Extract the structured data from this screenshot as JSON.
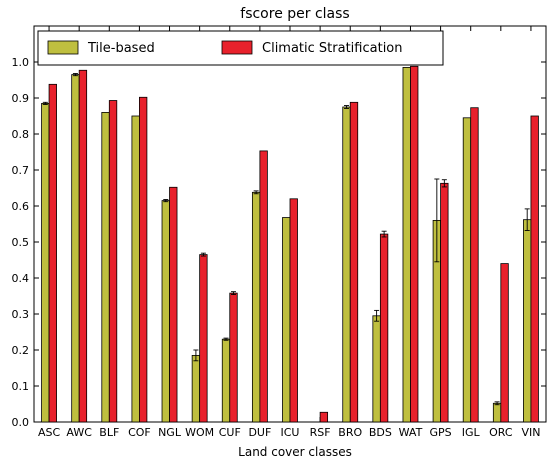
{
  "chart_data": {
    "type": "bar",
    "title": "fscore per class",
    "xlabel": "Land cover classes",
    "ylabel": "",
    "ylim": [
      0,
      1.1
    ],
    "yticks": [
      "0.0",
      "0.1",
      "0.2",
      "0.3",
      "0.4",
      "0.5",
      "0.6",
      "0.7",
      "0.8",
      "0.9",
      "1.0"
    ],
    "legend_position": "top-left",
    "categories": [
      "ASC",
      "AWC",
      "BLF",
      "COF",
      "NGL",
      "WOM",
      "CUF",
      "DUF",
      "ICU",
      "RSF",
      "BRO",
      "BDS",
      "WAT",
      "GPS",
      "IGL",
      "ORC",
      "VIN"
    ],
    "series": [
      {
        "name": "Tile-based",
        "color": "#bfbf3f",
        "values": [
          0.885,
          0.965,
          0.86,
          0.85,
          0.615,
          0.185,
          0.23,
          0.638,
          0.568,
          0.0,
          0.875,
          0.295,
          0.985,
          0.56,
          0.845,
          0.052,
          0.562
        ],
        "errors": [
          0.003,
          0.003,
          0.0,
          0.0,
          0.003,
          0.015,
          0.003,
          0.004,
          0.0,
          0.0,
          0.004,
          0.015,
          0.0,
          0.115,
          0.0,
          0.004,
          0.03
        ]
      },
      {
        "name": "Climatic Stratification",
        "color": "#e8212c",
        "values": [
          0.938,
          0.977,
          0.893,
          0.902,
          0.652,
          0.465,
          0.358,
          0.753,
          0.62,
          0.027,
          0.888,
          0.522,
          0.988,
          0.663,
          0.873,
          0.44,
          0.85
        ],
        "errors": [
          0.0,
          0.0,
          0.0,
          0.0,
          0.0,
          0.004,
          0.004,
          0.0,
          0.0,
          0.0,
          0.0,
          0.008,
          0.0,
          0.01,
          0.0,
          0.0,
          0.0
        ]
      }
    ]
  }
}
